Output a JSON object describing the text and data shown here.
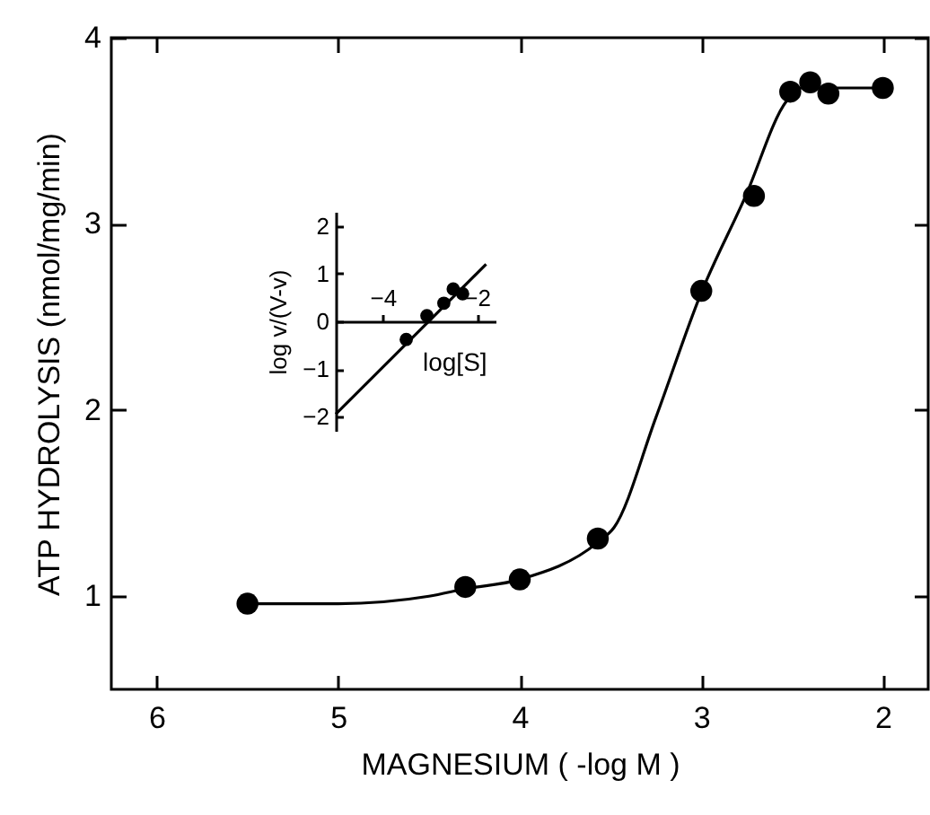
{
  "chart_data": [
    {
      "type": "scatter",
      "xlabel": "MAGNESIUM ( -log M )",
      "ylabel": "ATP HYDROLYSIS (nmol/mg/min)",
      "xlim": [
        6.25,
        1.75
      ],
      "ylim": [
        0.5,
        4
      ],
      "xticks": [
        6,
        5,
        4,
        3,
        2
      ],
      "yticks": [
        1,
        2,
        3,
        4
      ],
      "series": [
        {
          "type": "scatter",
          "marker": "circle",
          "color": "#000000",
          "x": [
            5.5,
            4.3,
            4.0,
            3.57,
            3.0,
            2.71,
            2.51,
            2.4,
            2.3,
            2.0
          ],
          "values": [
            0.96,
            1.05,
            1.09,
            1.31,
            2.64,
            3.15,
            3.71,
            3.76,
            3.7,
            3.73
          ]
        },
        {
          "type": "line",
          "color": "#000000",
          "x": [
            5.5,
            5.0,
            4.5,
            4.3,
            4.0,
            3.57,
            3.48,
            3.25,
            3.0,
            2.76,
            2.53,
            2.45,
            2.0
          ],
          "values": [
            0.96,
            0.96,
            1.0,
            1.04,
            1.09,
            1.29,
            1.37,
            1.96,
            2.63,
            3.14,
            3.66,
            3.73,
            3.73
          ]
        }
      ]
    },
    {
      "type": "scatter",
      "xlabel": "log[S]",
      "ylabel": "log v/(V-v)",
      "xlim": [
        -5,
        -1.6
      ],
      "ylim": [
        -2.3,
        2.3
      ],
      "xticks": [
        -4,
        -2
      ],
      "yticks": [
        -2,
        -1,
        0,
        1,
        2
      ],
      "series": [
        {
          "type": "scatter",
          "marker": "circle",
          "color": "#000000",
          "x": [
            -3.5,
            -3.06,
            -2.7,
            -2.5,
            -2.3
          ],
          "values": [
            -0.38,
            0.12,
            0.38,
            0.68,
            0.58
          ]
        },
        {
          "type": "line",
          "color": "#000000",
          "x": [
            -5,
            -1.8
          ],
          "values": [
            -1.95,
            1.2
          ]
        }
      ]
    }
  ]
}
